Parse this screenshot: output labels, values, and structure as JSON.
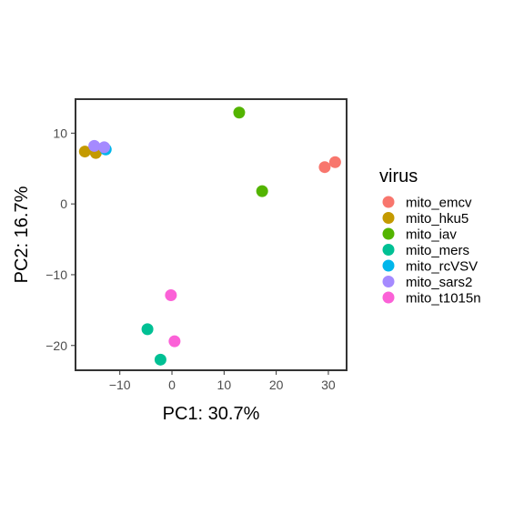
{
  "chart_data": {
    "type": "scatter",
    "xlabel": "PC1: 30.7%",
    "ylabel": "PC2: 16.7%",
    "xlim": [
      -18.5,
      33.5
    ],
    "ylim": [
      -23.5,
      14.8
    ],
    "x_ticks": [
      {
        "value": -10,
        "label": "−10"
      },
      {
        "value": 0,
        "label": "0"
      },
      {
        "value": 10,
        "label": "10"
      },
      {
        "value": 20,
        "label": "20"
      },
      {
        "value": 30,
        "label": "30"
      }
    ],
    "y_ticks": [
      {
        "value": 10,
        "label": "10"
      },
      {
        "value": 0,
        "label": "0"
      },
      {
        "value": -10,
        "label": "−10"
      },
      {
        "value": -20,
        "label": "−20"
      }
    ],
    "grid": false,
    "legend": {
      "title": "virus",
      "position": "right"
    },
    "series": [
      {
        "name": "mito_emcv",
        "color": "#F8766D",
        "points": [
          [
            29.3,
            5.2
          ],
          [
            31.3,
            5.9
          ]
        ]
      },
      {
        "name": "mito_hku5",
        "color": "#C49A00",
        "points": [
          [
            -16.7,
            7.4
          ],
          [
            -14.6,
            7.2
          ]
        ]
      },
      {
        "name": "mito_iav",
        "color": "#53B400",
        "points": [
          [
            12.9,
            12.9
          ],
          [
            17.3,
            1.8
          ]
        ]
      },
      {
        "name": "mito_mers",
        "color": "#00C094",
        "points": [
          [
            -4.7,
            -17.7
          ],
          [
            -2.2,
            -22.0
          ]
        ]
      },
      {
        "name": "mito_rcVSV",
        "color": "#00B6EB",
        "points": [
          [
            -12.7,
            7.7
          ]
        ]
      },
      {
        "name": "mito_sars2",
        "color": "#A58AFF",
        "points": [
          [
            -14.9,
            8.2
          ],
          [
            -13.0,
            8.0
          ]
        ]
      },
      {
        "name": "mito_t1015n",
        "color": "#FB61D7",
        "points": [
          [
            -0.2,
            -12.9
          ],
          [
            0.5,
            -19.4
          ]
        ]
      }
    ]
  }
}
